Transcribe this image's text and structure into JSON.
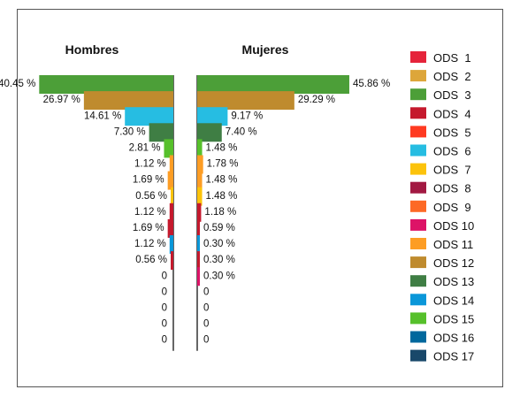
{
  "chart_data": {
    "type": "bar",
    "orientation": "horizontal-mirrored",
    "legend_position": "right",
    "categories": [
      "ODS  1",
      "ODS  2",
      "ODS  3",
      "ODS  4",
      "ODS  5",
      "ODS  6",
      "ODS  7",
      "ODS  8",
      "ODS  9",
      "ODS 10",
      "ODS 11",
      "ODS 12",
      "ODS 13",
      "ODS 14",
      "ODS 15",
      "ODS 16",
      "ODS 17"
    ],
    "series": [
      {
        "name": "Hombres",
        "values": [
          40.45,
          26.97,
          14.61,
          7.3,
          2.81,
          1.12,
          1.69,
          0.56,
          1.12,
          1.69,
          1.12,
          0.56,
          0,
          0,
          0,
          0,
          0
        ],
        "labels": [
          "40.45 %",
          "26.97 %",
          "14.61 %",
          "7.30 %",
          "2.81 %",
          "1.12 %",
          "1.69 %",
          "0.56 %",
          "1.12 %",
          "1.69 %",
          "1.12 %",
          "0.56 %",
          "0",
          "0",
          "0",
          "0",
          "0"
        ],
        "bar_ods": [
          3,
          12,
          6,
          13,
          15,
          11,
          11,
          7,
          4,
          4,
          14,
          4,
          4,
          4,
          4,
          4,
          4
        ]
      },
      {
        "name": "Mujeres",
        "values": [
          45.86,
          29.29,
          9.17,
          7.4,
          1.48,
          1.78,
          1.48,
          1.48,
          1.18,
          0.59,
          0.3,
          0.3,
          0.3,
          0,
          0,
          0,
          0
        ],
        "labels": [
          "45.86 %",
          "29.29 %",
          "9.17 %",
          "7.40 %",
          "1.48 %",
          "1.78 %",
          "1.48 %",
          "1.48 %",
          "1.18 %",
          "0.59 %",
          "0.30 %",
          "0.30 %",
          "0.30 %",
          "0",
          "0",
          "0",
          "0"
        ],
        "bar_ods": [
          3,
          12,
          6,
          13,
          15,
          11,
          11,
          7,
          4,
          4,
          14,
          4,
          10,
          4,
          4,
          4,
          4
        ]
      }
    ],
    "colors": [
      "#E5243B",
      "#DDA63A",
      "#4C9F38",
      "#C5192D",
      "#FF3A21",
      "#26BDE2",
      "#FCC30B",
      "#A21942",
      "#FD6925",
      "#DD1367",
      "#FD9D24",
      "#BF8B2E",
      "#3F7E44",
      "#0A97D9",
      "#56C02B",
      "#00689D",
      "#19486A"
    ]
  }
}
